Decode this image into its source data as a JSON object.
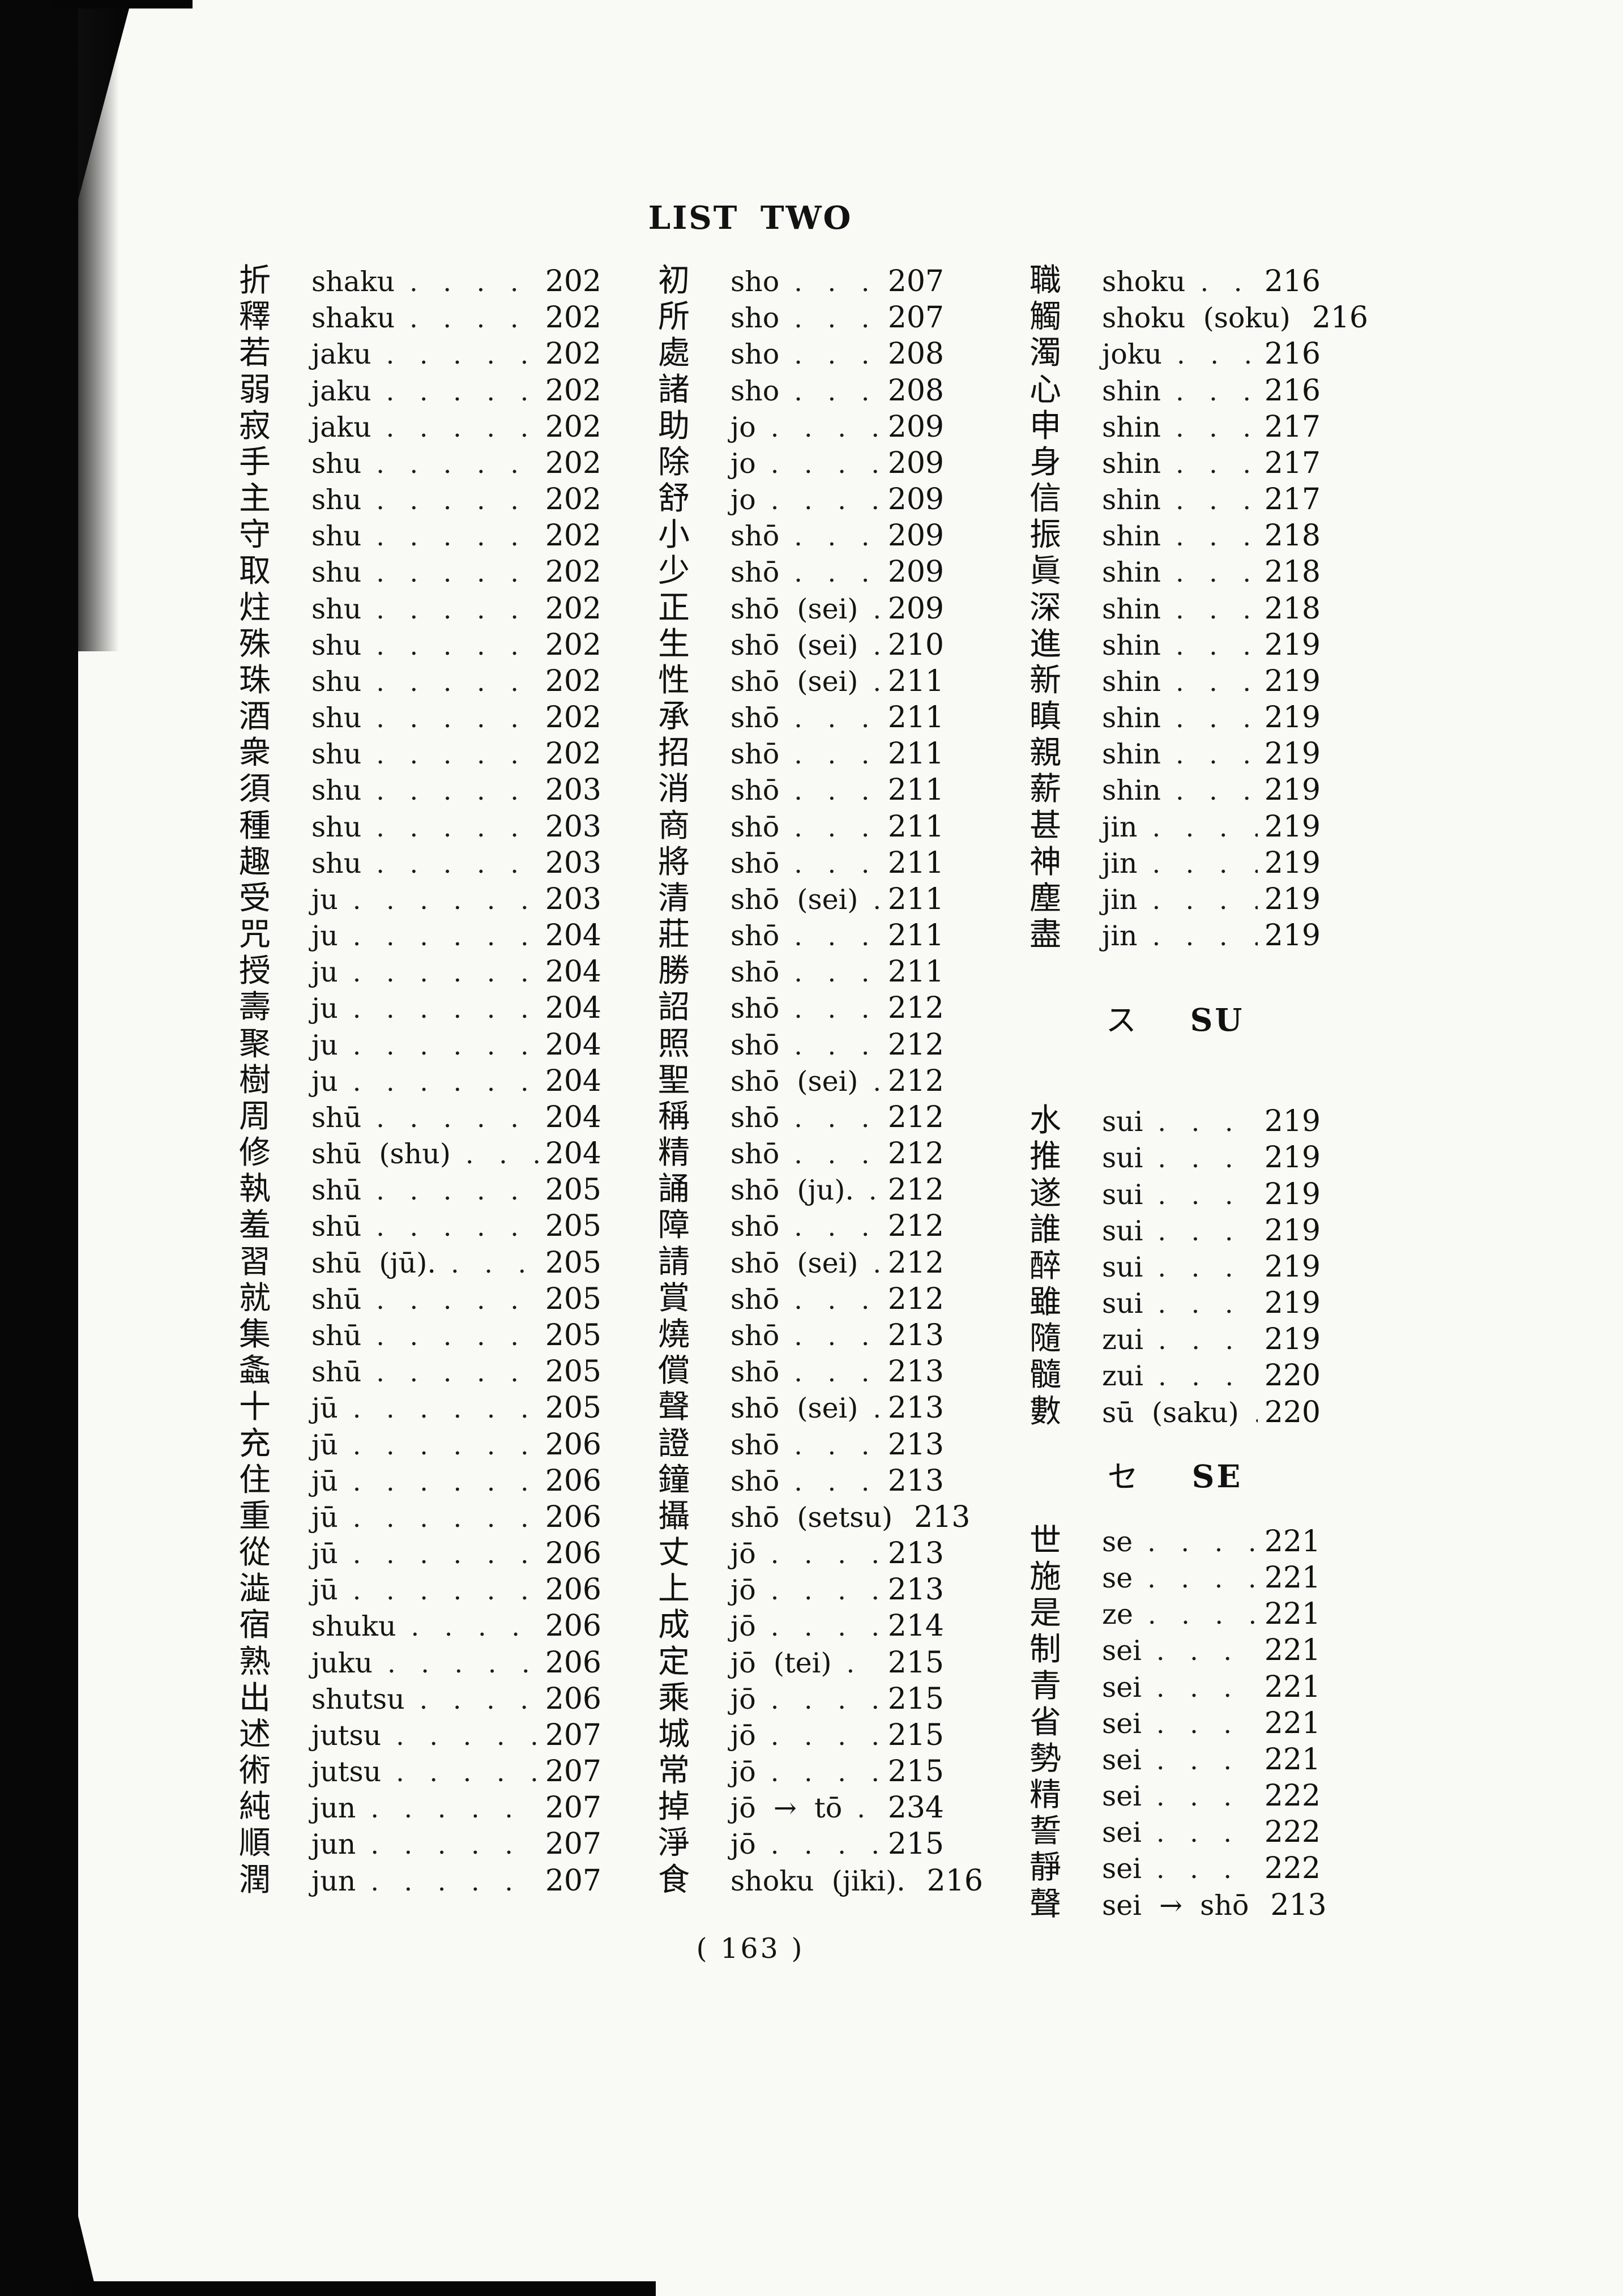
{
  "title": "LIST TWO",
  "folio": "( 163 )",
  "leader": ". . . . . . . . . . . . . . . . . . . . . . . . . . . . . .",
  "ink_color": "#111111",
  "paper_color": "#f9f9f6",
  "columns": [
    {
      "items": [
        {
          "kanji": "折",
          "reading": "shaku",
          "page": "202"
        },
        {
          "kanji": "釋",
          "reading": "shaku",
          "page": "202"
        },
        {
          "kanji": "若",
          "reading": "jaku",
          "page": "202"
        },
        {
          "kanji": "弱",
          "reading": "jaku",
          "page": "202"
        },
        {
          "kanji": "寂",
          "reading": "jaku",
          "page": "202"
        },
        {
          "kanji": "手",
          "reading": "shu",
          "page": "202"
        },
        {
          "kanji": "主",
          "reading": "shu",
          "page": "202"
        },
        {
          "kanji": "守",
          "reading": "shu",
          "page": "202"
        },
        {
          "kanji": "取",
          "reading": "shu",
          "page": "202"
        },
        {
          "kanji": "炷",
          "reading": "shu",
          "page": "202"
        },
        {
          "kanji": "殊",
          "reading": "shu",
          "page": "202"
        },
        {
          "kanji": "珠",
          "reading": "shu",
          "page": "202"
        },
        {
          "kanji": "酒",
          "reading": "shu",
          "page": "202"
        },
        {
          "kanji": "衆",
          "reading": "shu",
          "page": "202"
        },
        {
          "kanji": "須",
          "reading": "shu",
          "page": "203"
        },
        {
          "kanji": "種",
          "reading": "shu",
          "page": "203"
        },
        {
          "kanji": "趣",
          "reading": "shu",
          "page": "203"
        },
        {
          "kanji": "受",
          "reading": "ju",
          "page": "203"
        },
        {
          "kanji": "咒",
          "reading": "ju",
          "page": "204"
        },
        {
          "kanji": "授",
          "reading": "ju",
          "page": "204"
        },
        {
          "kanji": "壽",
          "reading": "ju",
          "page": "204"
        },
        {
          "kanji": "聚",
          "reading": "ju",
          "page": "204"
        },
        {
          "kanji": "樹",
          "reading": "ju",
          "page": "204"
        },
        {
          "kanji": "周",
          "reading": "shū",
          "page": "204"
        },
        {
          "kanji": "修",
          "reading": "shū  (shu)",
          "page": "204"
        },
        {
          "kanji": "執",
          "reading": "shū",
          "page": "205"
        },
        {
          "kanji": "羞",
          "reading": "shū",
          "page": "205"
        },
        {
          "kanji": "習",
          "reading": "shū  (jū).",
          "page": "205"
        },
        {
          "kanji": "就",
          "reading": "shū",
          "page": "205"
        },
        {
          "kanji": "集",
          "reading": "shū",
          "page": "205"
        },
        {
          "kanji": "螽",
          "reading": "shū",
          "page": "205"
        },
        {
          "kanji": "十",
          "reading": "jū",
          "page": "205"
        },
        {
          "kanji": "充",
          "reading": "jū",
          "page": "206"
        },
        {
          "kanji": "住",
          "reading": "jū",
          "page": "206"
        },
        {
          "kanji": "重",
          "reading": "jū",
          "page": "206"
        },
        {
          "kanji": "從",
          "reading": "jū",
          "page": "206"
        },
        {
          "kanji": "澁",
          "reading": "jū",
          "page": "206"
        },
        {
          "kanji": "宿",
          "reading": "shuku",
          "page": "206"
        },
        {
          "kanji": "熟",
          "reading": "juku",
          "page": "206"
        },
        {
          "kanji": "出",
          "reading": "shutsu",
          "page": "206"
        },
        {
          "kanji": "述",
          "reading": "jutsu",
          "page": "207"
        },
        {
          "kanji": "術",
          "reading": "jutsu",
          "page": "207"
        },
        {
          "kanji": "純",
          "reading": "jun",
          "page": "207"
        },
        {
          "kanji": "順",
          "reading": "jun",
          "page": "207"
        },
        {
          "kanji": "潤",
          "reading": "jun",
          "page": "207"
        }
      ]
    },
    {
      "items": [
        {
          "kanji": "初",
          "reading": "sho",
          "page": "207"
        },
        {
          "kanji": "所",
          "reading": "sho",
          "page": "207"
        },
        {
          "kanji": "處",
          "reading": "sho",
          "page": "208"
        },
        {
          "kanji": "諸",
          "reading": "sho",
          "page": "208"
        },
        {
          "kanji": "助",
          "reading": "jo",
          "page": "209"
        },
        {
          "kanji": "除",
          "reading": "jo",
          "page": "209"
        },
        {
          "kanji": "舒",
          "reading": "jo",
          "page": "209"
        },
        {
          "kanji": "小",
          "reading": "shō",
          "page": "209"
        },
        {
          "kanji": "少",
          "reading": "shō",
          "page": "209"
        },
        {
          "kanji": "正",
          "reading": "shō  (sei)",
          "page": "209"
        },
        {
          "kanji": "生",
          "reading": "shō  (sei)",
          "page": "210"
        },
        {
          "kanji": "性",
          "reading": "shō  (sei)",
          "page": "211"
        },
        {
          "kanji": "承",
          "reading": "shō",
          "page": "211"
        },
        {
          "kanji": "招",
          "reading": "shō",
          "page": "211"
        },
        {
          "kanji": "消",
          "reading": "shō",
          "page": "211"
        },
        {
          "kanji": "商",
          "reading": "shō",
          "page": "211"
        },
        {
          "kanji": "將",
          "reading": "shō",
          "page": "211"
        },
        {
          "kanji": "清",
          "reading": "shō  (sei)",
          "page": "211"
        },
        {
          "kanji": "莊",
          "reading": "shō",
          "page": "211"
        },
        {
          "kanji": "勝",
          "reading": "shō",
          "page": "211"
        },
        {
          "kanji": "詔",
          "reading": "shō",
          "page": "212"
        },
        {
          "kanji": "照",
          "reading": "shō",
          "page": "212"
        },
        {
          "kanji": "聖",
          "reading": "shō  (sei)",
          "page": "212"
        },
        {
          "kanji": "稱",
          "reading": "shō",
          "page": "212"
        },
        {
          "kanji": "精",
          "reading": "shō",
          "page": "212"
        },
        {
          "kanji": "誦",
          "reading": "shō  (ju).",
          "page": "212"
        },
        {
          "kanji": "障",
          "reading": "shō",
          "page": "212"
        },
        {
          "kanji": "請",
          "reading": "shō  (sei)",
          "page": "212"
        },
        {
          "kanji": "賞",
          "reading": "shō",
          "page": "212"
        },
        {
          "kanji": "燒",
          "reading": "shō",
          "page": "213"
        },
        {
          "kanji": "償",
          "reading": "shō",
          "page": "213"
        },
        {
          "kanji": "聲",
          "reading": "shō  (sei)",
          "page": "213"
        },
        {
          "kanji": "證",
          "reading": "shō",
          "page": "213"
        },
        {
          "kanji": "鐘",
          "reading": "shō",
          "page": "213"
        },
        {
          "kanji": "攝",
          "reading": "shō  (setsu)",
          "page": "213"
        },
        {
          "kanji": "丈",
          "reading": "jō",
          "page": "213"
        },
        {
          "kanji": "上",
          "reading": "jō",
          "page": "213"
        },
        {
          "kanji": "成",
          "reading": "jō",
          "page": "214"
        },
        {
          "kanji": "定",
          "reading": "jō  (tei)",
          "page": "215"
        },
        {
          "kanji": "乘",
          "reading": "jō",
          "page": "215"
        },
        {
          "kanji": "城",
          "reading": "jō",
          "page": "215"
        },
        {
          "kanji": "常",
          "reading": "jō",
          "page": "215"
        },
        {
          "kanji": "掉",
          "reading": "jō  →  tō",
          "page": "234"
        },
        {
          "kanji": "淨",
          "reading": "jō",
          "page": "215"
        },
        {
          "kanji": "食",
          "reading": "shoku  (jiki).",
          "page": "216"
        }
      ]
    },
    {
      "items": [
        {
          "kanji": "職",
          "reading": "shoku",
          "page": "216"
        },
        {
          "kanji": "觸",
          "reading": "shoku  (soku)",
          "page": "216"
        },
        {
          "kanji": "濁",
          "reading": "joku",
          "page": "216"
        },
        {
          "kanji": "心",
          "reading": "shin",
          "page": "216"
        },
        {
          "kanji": "申",
          "reading": "shin",
          "page": "217"
        },
        {
          "kanji": "身",
          "reading": "shin",
          "page": "217"
        },
        {
          "kanji": "信",
          "reading": "shin",
          "page": "217"
        },
        {
          "kanji": "振",
          "reading": "shin",
          "page": "218"
        },
        {
          "kanji": "眞",
          "reading": "shin",
          "page": "218"
        },
        {
          "kanji": "深",
          "reading": "shin",
          "page": "218"
        },
        {
          "kanji": "進",
          "reading": "shin",
          "page": "219"
        },
        {
          "kanji": "新",
          "reading": "shin",
          "page": "219"
        },
        {
          "kanji": "瞋",
          "reading": "shin",
          "page": "219"
        },
        {
          "kanji": "親",
          "reading": "shin",
          "page": "219"
        },
        {
          "kanji": "薪",
          "reading": "shin",
          "page": "219"
        },
        {
          "kanji": "甚",
          "reading": "jin",
          "page": "219"
        },
        {
          "kanji": "神",
          "reading": "jin",
          "page": "219"
        },
        {
          "kanji": "塵",
          "reading": "jin",
          "page": "219"
        },
        {
          "kanji": "盡",
          "reading": "jin",
          "page": "219"
        },
        {
          "type": "header",
          "kana": "ス",
          "label": "SU"
        },
        {
          "kanji": "水",
          "reading": "sui",
          "page": "219"
        },
        {
          "kanji": "推",
          "reading": "sui",
          "page": "219"
        },
        {
          "kanji": "遂",
          "reading": "sui",
          "page": "219"
        },
        {
          "kanji": "誰",
          "reading": "sui",
          "page": "219"
        },
        {
          "kanji": "醉",
          "reading": "sui",
          "page": "219"
        },
        {
          "kanji": "雖",
          "reading": "sui",
          "page": "219"
        },
        {
          "kanji": "隨",
          "reading": "zui",
          "page": "219"
        },
        {
          "kanji": "髓",
          "reading": "zui",
          "page": "220"
        },
        {
          "kanji": "數",
          "reading": "sū  (saku)",
          "page": "220"
        },
        {
          "type": "header",
          "kana": "セ",
          "label": "SE"
        },
        {
          "kanji": "世",
          "reading": "se",
          "page": "221"
        },
        {
          "kanji": "施",
          "reading": "se",
          "page": "221"
        },
        {
          "kanji": "是",
          "reading": "ze",
          "page": "221"
        },
        {
          "kanji": "制",
          "reading": "sei",
          "page": "221"
        },
        {
          "kanji": "青",
          "reading": "sei",
          "page": "221"
        },
        {
          "kanji": "省",
          "reading": "sei",
          "page": "221"
        },
        {
          "kanji": "勢",
          "reading": "sei",
          "page": "221"
        },
        {
          "kanji": "精",
          "reading": "sei",
          "page": "222"
        },
        {
          "kanji": "誓",
          "reading": "sei",
          "page": "222"
        },
        {
          "kanji": "靜",
          "reading": "sei",
          "page": "222"
        },
        {
          "kanji": "聲",
          "reading": "sei  →  shō",
          "page": "213"
        }
      ]
    }
  ]
}
